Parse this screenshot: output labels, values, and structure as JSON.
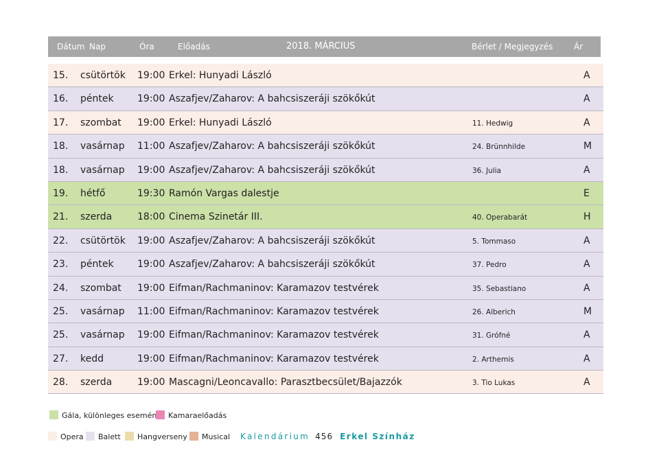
{
  "header": {
    "date": "Dátum",
    "day": "Nap",
    "time": "Óra",
    "show": "Előadás",
    "title": "2018. MÁRCIUS",
    "note": "Bérlet / Megjegyzés",
    "price": "Ár",
    "bg_color": "#a7a7a7"
  },
  "rows": [
    {
      "date": "15.",
      "day": "csütörtök",
      "time": "19:00",
      "title": "Erkel: Hunyadi László",
      "note": "",
      "price": "A",
      "type": "opera"
    },
    {
      "date": "16.",
      "day": "péntek",
      "time": "19:00",
      "title": "Aszafjev/Zaharov: A bahcsiszeráji szökőkút",
      "note": "",
      "price": "A",
      "type": "balett"
    },
    {
      "date": "17.",
      "day": "szombat",
      "time": "19:00",
      "title": "Erkel: Hunyadi László",
      "note": "11. Hedwig",
      "price": "A",
      "type": "opera"
    },
    {
      "date": "18.",
      "day": "vasárnap",
      "time": "11:00",
      "title": "Aszafjev/Zaharov: A bahcsiszeráji szökőkút",
      "note": "24. Brünnhilde",
      "price": "M",
      "type": "balett"
    },
    {
      "date": "18.",
      "day": "vasárnap",
      "time": "19:00",
      "title": "Aszafjev/Zaharov: A bahcsiszeráji szökőkút",
      "note": "36. Julia",
      "price": "A",
      "type": "balett"
    },
    {
      "date": "19.",
      "day": "hétfő",
      "time": "19:30",
      "title": "Ramón Vargas dalestje",
      "note": "",
      "price": "E",
      "type": "gala"
    },
    {
      "date": "21.",
      "day": "szerda",
      "time": "18:00",
      "title": "Cinema Szinetár III.",
      "note": "40. Operabarát",
      "price": "H",
      "type": "gala"
    },
    {
      "date": "22.",
      "day": "csütörtök",
      "time": "19:00",
      "title": "Aszafjev/Zaharov: A bahcsiszeráji szökőkút",
      "note": "5. Tommaso",
      "price": "A",
      "type": "balett"
    },
    {
      "date": "23.",
      "day": "péntek",
      "time": "19:00",
      "title": "Aszafjev/Zaharov: A bahcsiszeráji szökőkút",
      "note": "37. Pedro",
      "price": "A",
      "type": "balett"
    },
    {
      "date": "24.",
      "day": "szombat",
      "time": "19:00",
      "title": "Eifman/Rachmaninov: Karamazov testvérek",
      "note": "35. Sebastiano",
      "price": "A",
      "type": "balett"
    },
    {
      "date": "25.",
      "day": "vasárnap",
      "time": "11:00",
      "title": "Eifman/Rachmaninov: Karamazov testvérek",
      "note": "26. Alberich",
      "price": "M",
      "type": "balett"
    },
    {
      "date": "25.",
      "day": "vasárnap",
      "time": "19:00",
      "title": "Eifman/Rachmaninov: Karamazov testvérek",
      "note": "31. Grófné",
      "price": "A",
      "type": "balett"
    },
    {
      "date": "27.",
      "day": "kedd",
      "time": "19:00",
      "title": "Eifman/Rachmaninov: Karamazov testvérek",
      "note": "2. Arthemis",
      "price": "A",
      "type": "balett"
    },
    {
      "date": "28.",
      "day": "szerda",
      "time": "19:00",
      "title": "Mascagni/Leoncavallo: Parasztbecsület/Bajazzók",
      "note": "3. Tio Lukas",
      "price": "A",
      "type": "opera"
    }
  ],
  "legend": {
    "gala": {
      "label": "Gála, különleges esemény",
      "color": "#cbe1a8"
    },
    "kamara": {
      "label": "Kamaraelőadás",
      "color": "#e986b4"
    },
    "opera": {
      "label": "Opera",
      "color": "#fbeee6"
    },
    "balett": {
      "label": "Balett",
      "color": "#e6e0ee"
    },
    "hangverseny": {
      "label": "Hangverseny",
      "color": "#ecdcad"
    },
    "musical": {
      "label": "Musical",
      "color": "#e5b298"
    }
  },
  "footer": {
    "kalendarium": "Kalendárium",
    "page": "456",
    "erkel": "Erkel Színház",
    "accent_color": "#1a9aa0"
  }
}
